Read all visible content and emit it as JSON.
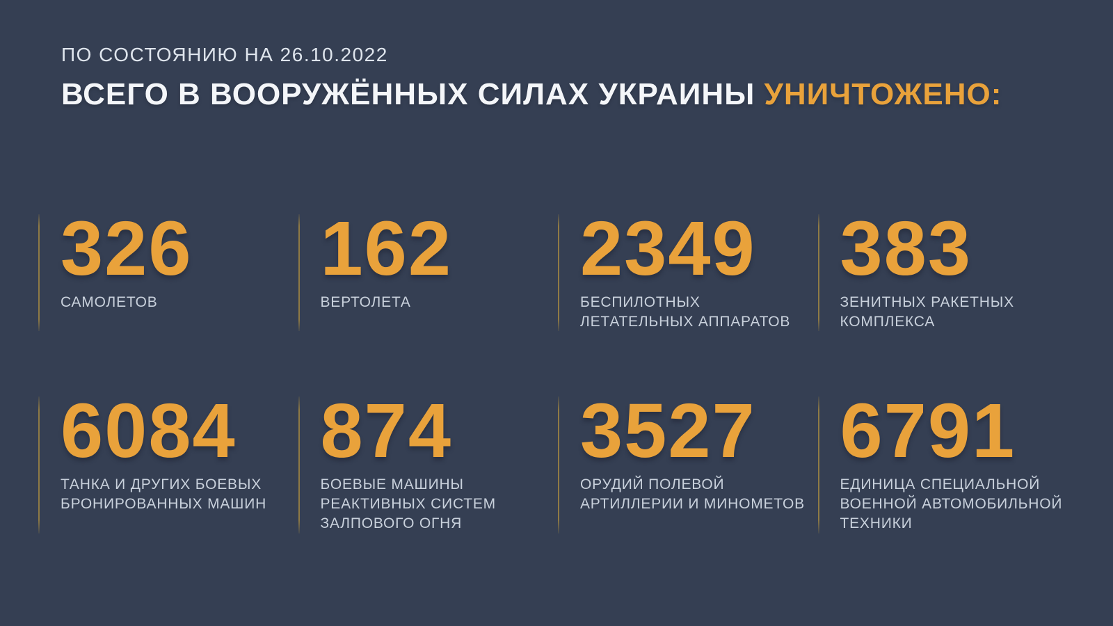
{
  "page": {
    "background_color": "#353F53",
    "accent_color": "#E9A23B",
    "divider_color": "#8F7A45",
    "label_color": "#C9D1DC"
  },
  "header": {
    "date_line": "ПО СОСТОЯНИЮ НА 26.10.2022",
    "title_main": "ВСЕГО В ВООРУЖЁННЫХ СИЛАХ УКРАИНЫ ",
    "title_accent": "УНИЧТОЖЕНО:"
  },
  "stats": {
    "items": [
      {
        "value": "326",
        "label": "САМОЛЕТОВ"
      },
      {
        "value": "162",
        "label": "ВЕРТОЛЕТА"
      },
      {
        "value": "2349",
        "label": "БЕСПИЛОТНЫХ\nЛЕТАТЕЛЬНЫХ АППАРАТОВ"
      },
      {
        "value": "383",
        "label": "ЗЕНИТНЫХ РАКЕТНЫХ\nКОМПЛЕКСА"
      },
      {
        "value": "6084",
        "label": "ТАНКА И ДРУГИХ БОЕВЫХ\nБРОНИРОВАННЫХ МАШИН"
      },
      {
        "value": "874",
        "label": "БОЕВЫЕ МАШИНЫ\nРЕАКТИВНЫХ СИСТЕМ\nЗАЛПОВОГО ОГНЯ"
      },
      {
        "value": "3527",
        "label": "ОРУДИЙ ПОЛЕВОЙ\nАРТИЛЛЕРИИ И МИНОМЕТОВ"
      },
      {
        "value": "6791",
        "label": "ЕДИНИЦА СПЕЦИАЛЬНОЙ\nВОЕННОЙ АВТОМОБИЛЬНОЙ\nТЕХНИКИ"
      }
    ]
  },
  "chart_data": {
    "type": "table",
    "title": "ВСЕГО В ВООРУЖЁННЫХ СИЛАХ УКРАИНЫ УНИЧТОЖЕНО:",
    "subtitle": "ПО СОСТОЯНИЮ НА 26.10.2022",
    "as_of_date": "26.10.2022",
    "categories": [
      "САМОЛЕТОВ",
      "ВЕРТОЛЕТА",
      "БЕСПИЛОТНЫХ ЛЕТАТЕЛЬНЫХ АППАРАТОВ",
      "ЗЕНИТНЫХ РАКЕТНЫХ КОМПЛЕКСА",
      "ТАНКА И ДРУГИХ БОЕВЫХ БРОНИРОВАННЫХ МАШИН",
      "БОЕВЫЕ МАШИНЫ РЕАКТИВНЫХ СИСТЕМ ЗАЛПОВОГО ОГНЯ",
      "ОРУДИЙ ПОЛЕВОЙ АРТИЛЛЕРИИ И МИНОМЕТОВ",
      "ЕДИНИЦА СПЕЦИАЛЬНОЙ ВОЕННОЙ АВТОМОБИЛЬНОЙ ТЕХНИКИ"
    ],
    "values": [
      326,
      162,
      2349,
      383,
      6084,
      874,
      3527,
      6791
    ],
    "layout": "4x2 grid of stat cards, values in amber, labels in light gray, gold divider rule left of each card"
  }
}
